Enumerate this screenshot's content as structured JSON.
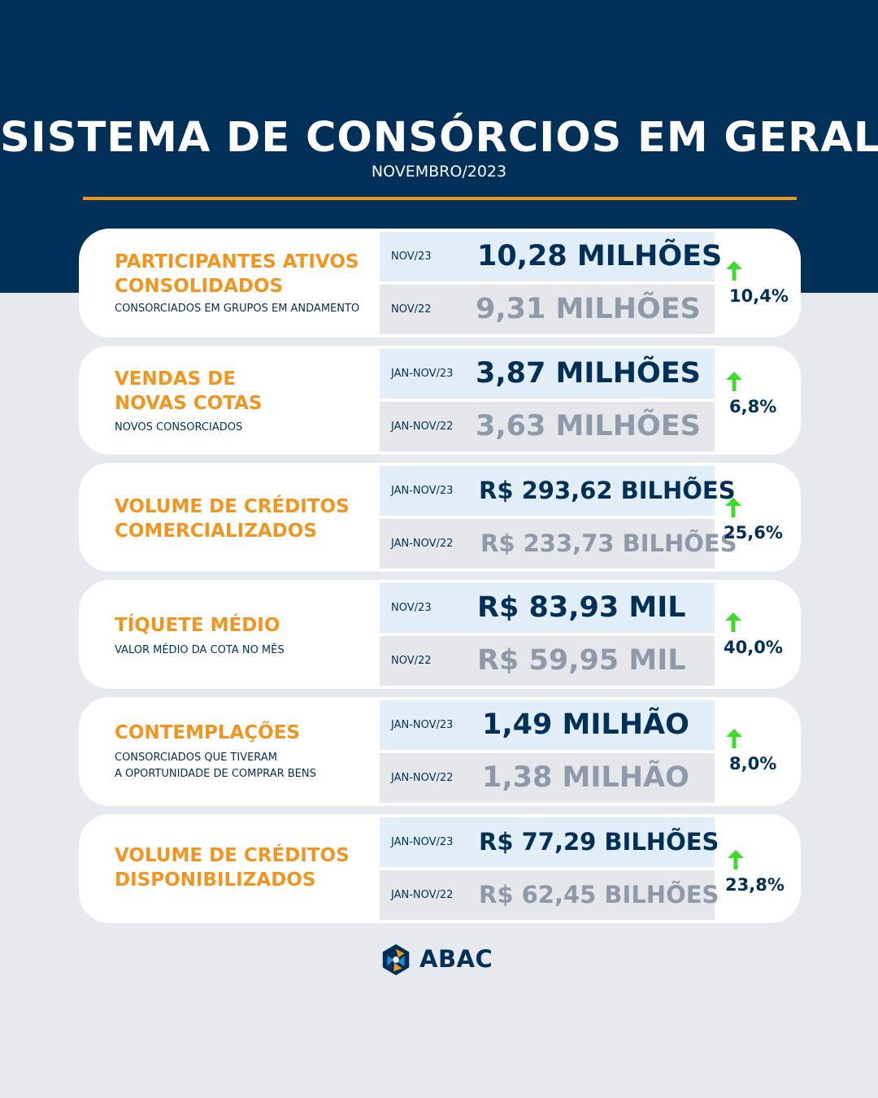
{
  "header": {
    "title": "SISTEMA DE CONSÓRCIOS EM GERAL",
    "subtitle": "NOVEMBRO/2023"
  },
  "colors": {
    "navy": "#003057",
    "orange": "#f0951f",
    "arrow_green": "#3ddc2a",
    "background": "#e6e9ee"
  },
  "cards": [
    {
      "title": "PARTICIPANTES ATIVOS\nCONSOLIDADOS",
      "description": "CONSORCIADOS EM GRUPOS EM ANDAMENTO",
      "current_period": "NOV/23",
      "current_value": "10,28 MILHÕES",
      "previous_period": "NOV/22",
      "previous_value": "9,31 MILHÕES",
      "change": "10,4%",
      "trend_icon": "arrow-up-icon"
    },
    {
      "title": "VENDAS DE\nNOVAS COTAS",
      "description": "NOVOS CONSORCIADOS",
      "current_period": "JAN-NOV/23",
      "current_value": "3,87 MILHÕES",
      "previous_period": "JAN-NOV/22",
      "previous_value": "3,63 MILHÕES",
      "change": "6,8%",
      "trend_icon": "arrow-up-icon"
    },
    {
      "title": "VOLUME DE CRÉDITOS\nCOMERCIALIZADOS",
      "description": "",
      "current_period": "JAN-NOV/23",
      "current_value": "R$ 293,62 BILHÕES",
      "previous_period": "JAN-NOV/22",
      "previous_value": "R$ 233,73 BILHÕES",
      "change": "25,6%",
      "trend_icon": "arrow-up-icon"
    },
    {
      "title": "TÍQUETE MÉDIO",
      "description": "VALOR MÉDIO DA COTA NO MÊS",
      "current_period": "NOV/23",
      "current_value": "R$ 83,93 MIL",
      "previous_period": "NOV/22",
      "previous_value": "R$ 59,95 MIL",
      "change": "40,0%",
      "trend_icon": "arrow-up-icon"
    },
    {
      "title": "CONTEMPLAÇÕES",
      "description": "CONSORCIADOS QUE TIVERAM\nA OPORTUNIDADE DE COMPRAR BENS",
      "current_period": "JAN-NOV/23",
      "current_value": "1,49 MILHÃO",
      "previous_period": "JAN-NOV/22",
      "previous_value": "1,38 MILHÃO",
      "change": "8,0%",
      "trend_icon": "arrow-up-icon"
    },
    {
      "title": "VOLUME DE CRÉDITOS\nDISPONIBILIZADOS",
      "description": "",
      "current_period": "JAN-NOV/23",
      "current_value": "R$ 77,29 BILHÕES",
      "previous_period": "JAN-NOV/22",
      "previous_value": "R$ 62,45 BILHÕES",
      "change": "23,8%",
      "trend_icon": "arrow-up-icon"
    }
  ],
  "footer": {
    "logo_text": "ABAC"
  }
}
